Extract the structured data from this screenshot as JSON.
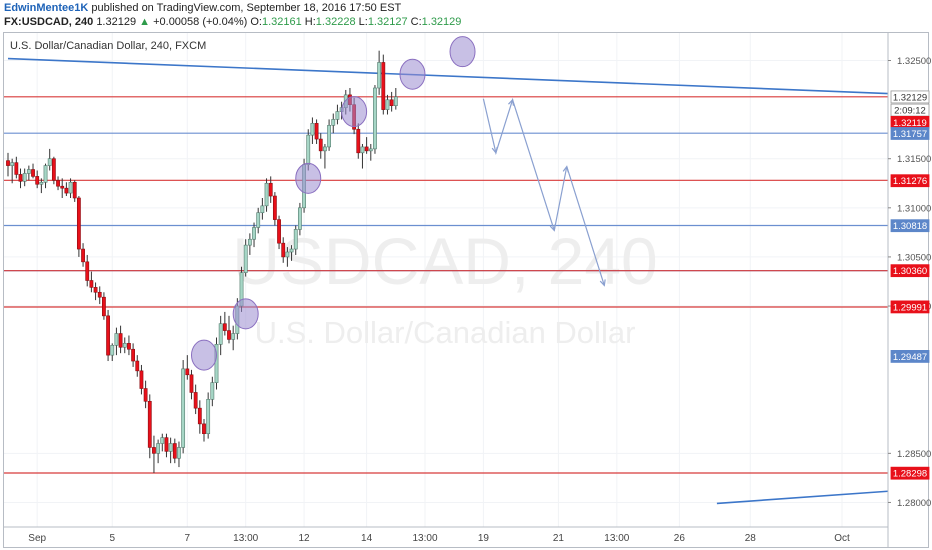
{
  "header": {
    "author": "EdwinMentee1K",
    "published": " published on TradingView.com, September 18, 2016 17:50 EST",
    "symbol": "FX:USDCAD, 240",
    "last": "1.32129",
    "change_arrow": "▲",
    "change": "+0.00058 (+0.04%)",
    "o_label": "O:",
    "o_value": "1.32161",
    "h_label": "H:",
    "h_value": "1.32228",
    "l_label": "L:",
    "l_value": "1.32127",
    "c_label": "C:",
    "c_value": "1.32129"
  },
  "colors": {
    "bull": "#a6d6c6",
    "bull_border": "#547b6e",
    "bear": "#e8101a",
    "bear_border": "#8a0d12",
    "red_level": "#d83a3a",
    "blue_level": "#6b8fd0",
    "trend": "#3c76c9",
    "highlight_fill": "#9b8ccf",
    "arrows": "#8aa0d0",
    "watermark": "#eeeeee"
  },
  "chart_data": {
    "type": "candlestick",
    "title": "U.S. Dollar/Canadian Dollar, 240, FXCM",
    "watermark": "USDCAD, 240",
    "watermark_sub": "U.S. Dollar/Canadian Dollar",
    "ylim": [
      1.2775,
      1.3278
    ],
    "y_ticks": [
      "1.32500",
      "1.31500",
      "1.31000",
      "1.30500",
      "1.30000",
      "1.28500",
      "1.28000"
    ],
    "x_labels": [
      "Sep",
      "5",
      "7",
      "13:00",
      "12",
      "14",
      "13:00",
      "19",
      "21",
      "13:00",
      "26",
      "28",
      "Oct"
    ],
    "x_label_slots": [
      7,
      25,
      43,
      57,
      71,
      86,
      100,
      114,
      132,
      146,
      161,
      178,
      200
    ],
    "price_labels": [
      {
        "text": "1.32129",
        "price": 1.32129,
        "bg": "#ffffff",
        "fg": "#333333"
      },
      {
        "text": "2:09:12",
        "price": 1.31995,
        "bg": "#ffffff",
        "fg": "#333333"
      },
      {
        "text": "1.32119",
        "price": 1.3187,
        "bg": "#e8101a",
        "fg": "#ffffff"
      },
      {
        "text": "1.31757",
        "price": 1.31757,
        "bg": "#5c86c9",
        "fg": "#ffffff"
      },
      {
        "text": "1.31276",
        "price": 1.31276,
        "bg": "#e8101a",
        "fg": "#ffffff"
      },
      {
        "text": "1.30818",
        "price": 1.30818,
        "bg": "#5c86c9",
        "fg": "#ffffff"
      },
      {
        "text": "1.30360",
        "price": 1.3036,
        "bg": "#e8101a",
        "fg": "#ffffff"
      },
      {
        "text": "1.29991",
        "price": 1.29991,
        "bg": "#e8101a",
        "fg": "#ffffff"
      },
      {
        "text": "1.29487",
        "price": 1.29487,
        "bg": "#5c86c9",
        "fg": "#ffffff"
      },
      {
        "text": "1.28298",
        "price": 1.28298,
        "bg": "#e8101a",
        "fg": "#ffffff"
      }
    ],
    "red_levels": [
      1.3213,
      1.3128,
      1.3036,
      1.2999,
      1.283
    ],
    "blue_levels": [
      1.3176,
      1.3082,
      1.3036
    ],
    "trendlines": [
      {
        "from": [
          0,
          1.3252
        ],
        "to": [
          213,
          1.3216
        ]
      },
      {
        "from": [
          170,
          1.2799
        ],
        "to": [
          213,
          1.2812
        ]
      }
    ],
    "highlights": [
      {
        "slot": 47,
        "price": 1.295
      },
      {
        "slot": 57,
        "price": 1.2992
      },
      {
        "slot": 72,
        "price": 1.313
      },
      {
        "slot": 83,
        "price": 1.3198
      },
      {
        "slot": 97,
        "price": 1.3236
      },
      {
        "slot": 109,
        "price": 1.3259
      }
    ],
    "projection_path": [
      [
        114,
        1.3211
      ],
      [
        117,
        1.3156
      ],
      [
        121,
        1.321
      ],
      [
        131,
        1.3077
      ],
      [
        134,
        1.3142
      ],
      [
        143,
        1.3021
      ]
    ],
    "candles": [
      [
        1.3148,
        1.3156,
        1.3132,
        1.3143
      ],
      [
        1.3143,
        1.315,
        1.3125,
        1.3146
      ],
      [
        1.3146,
        1.3152,
        1.313,
        1.3134
      ],
      [
        1.3134,
        1.314,
        1.312,
        1.3127
      ],
      [
        1.3127,
        1.314,
        1.3122,
        1.3135
      ],
      [
        1.3135,
        1.3143,
        1.3128,
        1.3139
      ],
      [
        1.3139,
        1.3145,
        1.313,
        1.3132
      ],
      [
        1.3132,
        1.3138,
        1.312,
        1.3124
      ],
      [
        1.3124,
        1.313,
        1.3115,
        1.3126
      ],
      [
        1.3126,
        1.3145,
        1.312,
        1.3143
      ],
      [
        1.3143,
        1.316,
        1.3138,
        1.315
      ],
      [
        1.315,
        1.3152,
        1.3124,
        1.3128
      ],
      [
        1.3128,
        1.3132,
        1.3118,
        1.3122
      ],
      [
        1.3122,
        1.313,
        1.311,
        1.312
      ],
      [
        1.312,
        1.3126,
        1.3112,
        1.3115
      ],
      [
        1.3115,
        1.313,
        1.311,
        1.3126
      ],
      [
        1.3126,
        1.3128,
        1.3106,
        1.311
      ],
      [
        1.311,
        1.3112,
        1.305,
        1.3058
      ],
      [
        1.3058,
        1.3064,
        1.304,
        1.3045
      ],
      [
        1.3045,
        1.3052,
        1.302,
        1.3026
      ],
      [
        1.3026,
        1.3035,
        1.3014,
        1.3019
      ],
      [
        1.3019,
        1.3024,
        1.3006,
        1.3014
      ],
      [
        1.3014,
        1.302,
        1.3002,
        1.3009
      ],
      [
        1.3009,
        1.3014,
        1.2986,
        1.299
      ],
      [
        1.299,
        1.2996,
        1.2944,
        1.295
      ],
      [
        1.295,
        1.2962,
        1.2944,
        1.296
      ],
      [
        1.296,
        1.2978,
        1.295,
        1.2972
      ],
      [
        1.2972,
        1.298,
        1.2952,
        1.2958
      ],
      [
        1.2958,
        1.2968,
        1.2952,
        1.2962
      ],
      [
        1.2962,
        1.297,
        1.295,
        1.2956
      ],
      [
        1.2956,
        1.2962,
        1.2938,
        1.2944
      ],
      [
        1.2944,
        1.295,
        1.2928,
        1.2934
      ],
      [
        1.2934,
        1.294,
        1.291,
        1.2916
      ],
      [
        1.2916,
        1.2924,
        1.2896,
        1.2903
      ],
      [
        1.2903,
        1.291,
        1.2845,
        1.2856
      ],
      [
        1.2856,
        1.2868,
        1.283,
        1.285
      ],
      [
        1.285,
        1.2864,
        1.284,
        1.286
      ],
      [
        1.286,
        1.287,
        1.2852,
        1.2866
      ],
      [
        1.2866,
        1.287,
        1.2846,
        1.2852
      ],
      [
        1.2852,
        1.2866,
        1.284,
        1.286
      ],
      [
        1.286,
        1.2865,
        1.284,
        1.2845
      ],
      [
        1.2845,
        1.2862,
        1.2836,
        1.2856
      ],
      [
        1.2856,
        1.2945,
        1.285,
        1.2936
      ],
      [
        1.2936,
        1.295,
        1.2925,
        1.293
      ],
      [
        1.293,
        1.2935,
        1.2905,
        1.2912
      ],
      [
        1.2912,
        1.292,
        1.289,
        1.2896
      ],
      [
        1.2896,
        1.2904,
        1.287,
        1.288
      ],
      [
        1.288,
        1.2885,
        1.2862,
        1.287
      ],
      [
        1.287,
        1.2912,
        1.2865,
        1.2905
      ],
      [
        1.2905,
        1.2928,
        1.2898,
        1.2922
      ],
      [
        1.2922,
        1.2968,
        1.2915,
        1.2961
      ],
      [
        1.2961,
        1.299,
        1.295,
        1.2982
      ],
      [
        1.2982,
        1.2994,
        1.297,
        1.2975
      ],
      [
        1.2975,
        1.299,
        1.2962,
        1.2966
      ],
      [
        1.2966,
        1.298,
        1.2955,
        1.2972
      ],
      [
        1.2972,
        1.3008,
        1.2966,
        1.3
      ],
      [
        1.3,
        1.304,
        1.2994,
        1.3034
      ],
      [
        1.3034,
        1.3068,
        1.303,
        1.3062
      ],
      [
        1.3062,
        1.3074,
        1.3052,
        1.3068
      ],
      [
        1.3068,
        1.3085,
        1.306,
        1.308
      ],
      [
        1.308,
        1.31,
        1.3074,
        1.3095
      ],
      [
        1.3095,
        1.311,
        1.3088,
        1.3102
      ],
      [
        1.3102,
        1.313,
        1.3096,
        1.3125
      ],
      [
        1.3125,
        1.3132,
        1.3105,
        1.3112
      ],
      [
        1.3112,
        1.3116,
        1.3082,
        1.3088
      ],
      [
        1.3088,
        1.3092,
        1.3058,
        1.3064
      ],
      [
        1.3064,
        1.307,
        1.3044,
        1.305
      ],
      [
        1.305,
        1.306,
        1.304,
        1.3055
      ],
      [
        1.3055,
        1.3062,
        1.3046,
        1.3058
      ],
      [
        1.3058,
        1.3082,
        1.3052,
        1.3078
      ],
      [
        1.3078,
        1.3105,
        1.3072,
        1.31
      ],
      [
        1.31,
        1.315,
        1.3095,
        1.3144
      ],
      [
        1.3144,
        1.318,
        1.3138,
        1.3174
      ],
      [
        1.3174,
        1.3192,
        1.3165,
        1.3186
      ],
      [
        1.3186,
        1.319,
        1.3165,
        1.317
      ],
      [
        1.317,
        1.3176,
        1.315,
        1.3158
      ],
      [
        1.3158,
        1.3165,
        1.314,
        1.3162
      ],
      [
        1.3162,
        1.319,
        1.3158,
        1.3184
      ],
      [
        1.3184,
        1.3196,
        1.3176,
        1.319
      ],
      [
        1.319,
        1.3205,
        1.3185,
        1.3198
      ],
      [
        1.3198,
        1.3208,
        1.319,
        1.3202
      ],
      [
        1.3202,
        1.322,
        1.3195,
        1.3215
      ],
      [
        1.3215,
        1.3222,
        1.3198,
        1.3205
      ],
      [
        1.3205,
        1.3212,
        1.3175,
        1.318
      ],
      [
        1.318,
        1.3186,
        1.315,
        1.3156
      ],
      [
        1.3156,
        1.3165,
        1.314,
        1.3162
      ],
      [
        1.3162,
        1.3172,
        1.3155,
        1.3158
      ],
      [
        1.3158,
        1.3165,
        1.3148,
        1.316
      ],
      [
        1.316,
        1.3225,
        1.3155,
        1.3222
      ],
      [
        1.3222,
        1.326,
        1.3215,
        1.3248
      ],
      [
        1.3248,
        1.3256,
        1.3195,
        1.32
      ],
      [
        1.32,
        1.3215,
        1.3195,
        1.321
      ],
      [
        1.321,
        1.3218,
        1.3198,
        1.3204
      ],
      [
        1.3204,
        1.3222,
        1.32,
        1.3213
      ]
    ]
  }
}
